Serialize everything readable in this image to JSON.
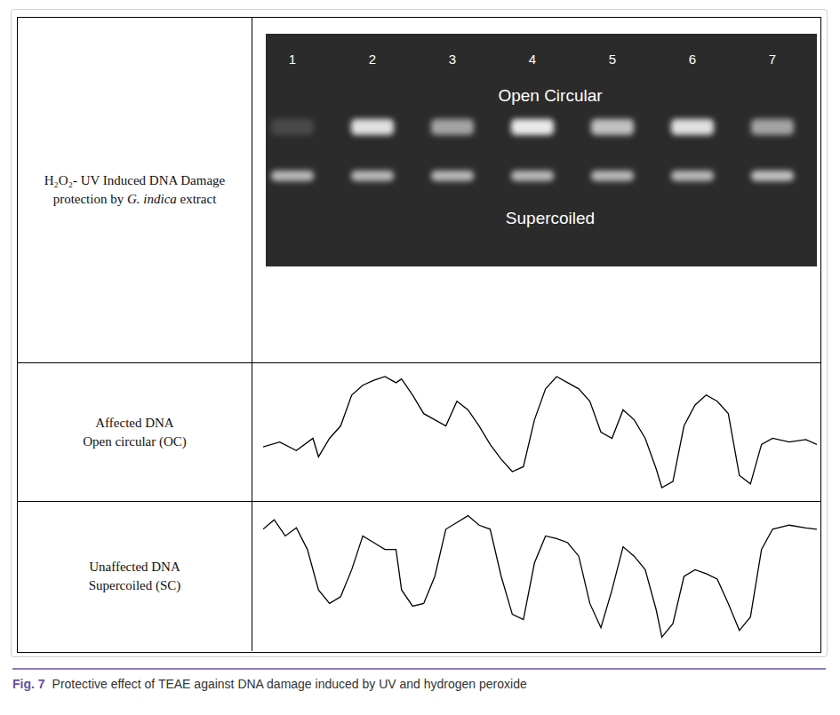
{
  "figure": {
    "rows": [
      {
        "label": [
          {
            "text": "H₂O₂- UV Induced DNA Damage protection by "
          },
          {
            "text": "G. indica",
            "italic": true
          },
          {
            "text": " extract"
          }
        ]
      },
      {
        "label": [
          {
            "text": "Affected DNA"
          },
          {
            "text": "Open circular (OC)",
            "newline": true
          }
        ]
      },
      {
        "label": [
          {
            "text": "Unaffected DNA"
          },
          {
            "text": "Supercoiled (SC)",
            "newline": true
          }
        ]
      }
    ],
    "gel": {
      "lanes": [
        "1",
        "2",
        "3",
        "4",
        "5",
        "6",
        "7"
      ],
      "bands": [
        {
          "label": "Open Circular",
          "intensity": [
            0.15,
            0.9,
            0.6,
            0.95,
            0.75,
            0.9,
            0.6
          ]
        },
        {
          "label": "Supercoiled",
          "intensity": [
            0.7,
            0.7,
            0.7,
            0.7,
            0.7,
            0.7,
            0.75
          ]
        }
      ]
    },
    "caption": {
      "label": "Fig. 7",
      "text": "Protective effect of TEAE against DNA damage induced by UV and hydrogen peroxide"
    }
  },
  "chart_data": [
    {
      "type": "line",
      "color": "#000000",
      "tick_labels": false,
      "grid": false,
      "xlim": [
        0,
        100
      ],
      "ylim": [
        0,
        100
      ],
      "x": [
        0,
        3,
        6,
        9,
        10,
        12,
        14,
        16,
        18,
        20,
        22,
        24,
        25,
        27,
        29,
        31,
        33,
        35,
        37,
        39,
        41,
        43,
        45,
        47,
        49,
        51,
        53,
        55,
        57,
        59,
        61,
        63,
        65,
        67,
        69,
        71,
        72,
        74,
        76,
        78,
        80,
        82,
        84,
        86,
        88,
        90,
        92,
        95,
        98,
        100
      ],
      "values": [
        38,
        42,
        35,
        45,
        30,
        45,
        55,
        80,
        88,
        92,
        95,
        90,
        93,
        80,
        65,
        60,
        55,
        75,
        68,
        55,
        40,
        28,
        18,
        22,
        60,
        85,
        95,
        90,
        85,
        75,
        50,
        45,
        68,
        60,
        45,
        20,
        5,
        10,
        55,
        72,
        80,
        75,
        65,
        15,
        8,
        40,
        45,
        42,
        44,
        40
      ]
    },
    {
      "type": "line",
      "color": "#000000",
      "tick_labels": false,
      "grid": false,
      "xlim": [
        0,
        100
      ],
      "ylim": [
        0,
        100
      ],
      "x": [
        0,
        2,
        4,
        6,
        8,
        10,
        12,
        14,
        16,
        18,
        20,
        22,
        24,
        25,
        27,
        29,
        31,
        33,
        35,
        37,
        39,
        41,
        43,
        45,
        47,
        49,
        51,
        53,
        55,
        57,
        59,
        61,
        63,
        65,
        67,
        69,
        71,
        72,
        74,
        76,
        78,
        80,
        82,
        84,
        86,
        88,
        90,
        92,
        95,
        98,
        100
      ],
      "values": [
        85,
        92,
        80,
        86,
        70,
        40,
        30,
        35,
        55,
        80,
        75,
        70,
        70,
        40,
        28,
        30,
        50,
        85,
        90,
        95,
        88,
        85,
        50,
        22,
        18,
        60,
        80,
        78,
        75,
        65,
        30,
        12,
        40,
        72,
        65,
        55,
        25,
        5,
        15,
        50,
        55,
        52,
        48,
        30,
        10,
        20,
        70,
        85,
        88,
        86,
        85
      ]
    }
  ]
}
